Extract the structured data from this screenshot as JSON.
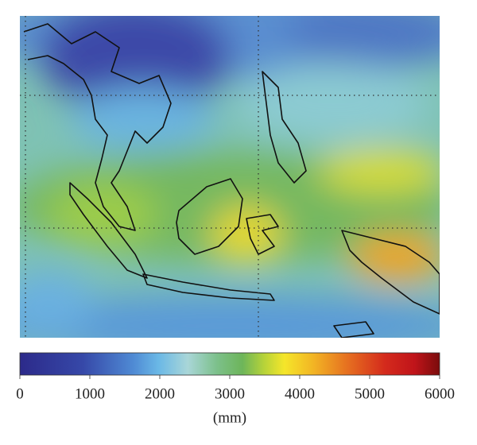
{
  "colorbar": {
    "lim": [
      0,
      6000
    ],
    "ticks": [
      0,
      1000,
      2000,
      3000,
      4000,
      5000,
      6000
    ],
    "label": "(mm)"
  }
}
